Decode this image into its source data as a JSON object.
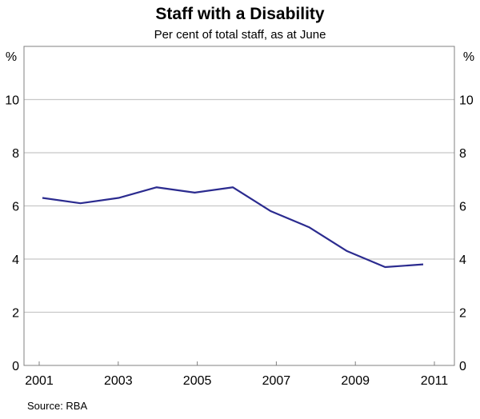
{
  "chart_data": {
    "type": "line",
    "title": "Staff with a Disability",
    "subtitle": "Per cent of total staff, as at June",
    "ylabel_left": "%",
    "ylabel_right": "%",
    "xlabel": "",
    "source": "Source: RBA",
    "ylim": [
      0,
      12
    ],
    "yticks": [
      0,
      2,
      4,
      6,
      8,
      10
    ],
    "xtick_labels": [
      "2001",
      "2003",
      "2005",
      "2007",
      "2009",
      "2011"
    ],
    "grid": true,
    "line_color": "#2b2b8f",
    "x": [
      2001,
      2002,
      2003,
      2004,
      2005,
      2006,
      2007,
      2008,
      2009,
      2010,
      2011
    ],
    "values": [
      6.3,
      6.1,
      6.3,
      6.7,
      6.5,
      6.7,
      5.8,
      5.2,
      4.3,
      3.7,
      3.8
    ]
  }
}
